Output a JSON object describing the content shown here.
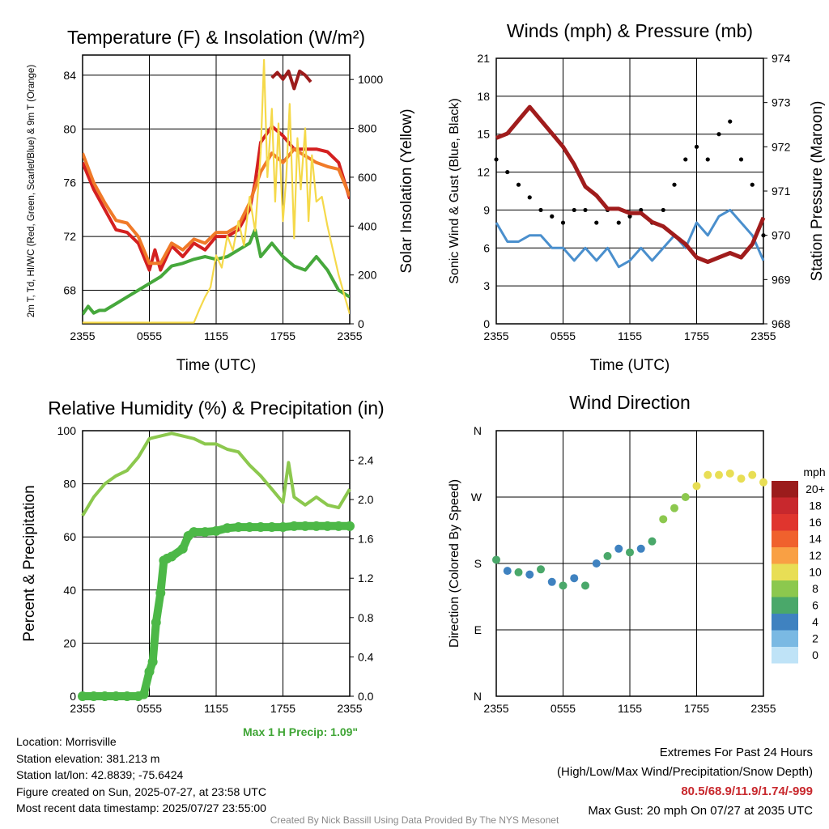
{
  "chart_data": [
    {
      "type": "line",
      "title": "Temperature (F) & Insolation (W/m²)",
      "xlabel": "Time (UTC)",
      "ylabel": "2m T, Td, HI/WC (Red, Green, Scarlet/Blue) & 9m T (Orange)",
      "y2label": "Solar Insolation (Yellow)",
      "x_ticks": [
        "2355",
        "0555",
        "1155",
        "1755",
        "2355"
      ],
      "y_ticks": [
        68,
        72,
        76,
        80,
        84
      ],
      "y2_ticks": [
        0,
        200,
        400,
        600,
        800,
        1000
      ],
      "ylim": [
        65.5,
        85.5
      ],
      "y2lim": [
        0,
        1100
      ],
      "series": [
        {
          "name": "2m T",
          "color": "#d42020",
          "x": [
            0,
            1,
            2,
            3,
            4,
            5,
            6,
            6.5,
            7,
            8,
            9,
            10,
            11,
            12,
            13,
            14,
            15,
            15.5,
            16,
            17,
            18,
            19,
            20,
            21,
            22,
            23,
            24
          ],
          "values": [
            77.5,
            75.5,
            74,
            72.5,
            72.3,
            71.5,
            69.5,
            71,
            69.5,
            71.3,
            70.5,
            71.5,
            71,
            72,
            72,
            72.5,
            74,
            76,
            79,
            80.2,
            79.5,
            78.5,
            78.5,
            78.5,
            78.3,
            77.5,
            74.8
          ]
        },
        {
          "name": "9m T",
          "color": "#f07a28",
          "x": [
            0,
            1,
            2,
            3,
            4,
            5,
            6,
            7,
            8,
            9,
            10,
            11,
            12,
            13,
            14,
            15,
            16,
            17,
            18,
            19,
            20,
            21,
            22,
            23,
            24
          ],
          "values": [
            78.2,
            76,
            74.5,
            73.2,
            73,
            72,
            70,
            70,
            71.5,
            71,
            71.8,
            71.5,
            72.3,
            72.3,
            72.8,
            74.5,
            76.8,
            78.2,
            77.5,
            78.5,
            78,
            77.5,
            77.2,
            77,
            75
          ]
        },
        {
          "name": "HI",
          "color": "#9c1c1c",
          "x": [
            17,
            17.5,
            18,
            18.5,
            19,
            19.5,
            20,
            20.5
          ],
          "values": [
            83.8,
            84.2,
            83.7,
            84.3,
            83,
            84.3,
            84,
            83.5
          ]
        },
        {
          "name": "Td",
          "color": "#46a83c",
          "x": [
            0,
            0.5,
            1,
            1.5,
            2,
            3,
            4,
            5,
            6,
            7,
            8,
            9,
            10,
            11,
            12,
            13,
            14,
            15,
            15.5,
            16,
            17,
            18,
            19,
            20,
            21,
            22,
            23,
            24
          ],
          "values": [
            66.2,
            66.8,
            66.3,
            66.5,
            66.5,
            67,
            67.5,
            68,
            68.5,
            69,
            69.8,
            70,
            70.3,
            70.5,
            70.3,
            70.5,
            71,
            71.5,
            72.5,
            70.5,
            71.5,
            70.5,
            69.8,
            69.5,
            70.5,
            69.5,
            68,
            67.5
          ]
        },
        {
          "name": "Solar",
          "color": "#f5d94a",
          "axis": "y2",
          "x": [
            0,
            1,
            2,
            3,
            4,
            5,
            6,
            7,
            8,
            9,
            10,
            10.5,
            11,
            11.5,
            12,
            12.5,
            13,
            13.5,
            14,
            14.5,
            15,
            15.5,
            16,
            16.3,
            16.6,
            17,
            17.3,
            17.6,
            18,
            18.3,
            18.6,
            19,
            19.3,
            19.6,
            20,
            20.3,
            20.6,
            21,
            21.5,
            22,
            22.5,
            23,
            23.5,
            24
          ],
          "values": [
            5,
            5,
            5,
            5,
            5,
            5,
            5,
            5,
            5,
            5,
            5,
            60,
            110,
            150,
            280,
            230,
            360,
            300,
            420,
            320,
            520,
            380,
            700,
            1080,
            600,
            880,
            500,
            820,
            420,
            600,
            900,
            350,
            760,
            550,
            800,
            420,
            690,
            500,
            520,
            400,
            300,
            200,
            120,
            40
          ]
        }
      ]
    },
    {
      "type": "line",
      "title": "Winds (mph) & Pressure (mb)",
      "xlabel": "Time (UTC)",
      "ylabel": "Sonic Wind & Gust (Blue, Black)",
      "y2label": "Station Pressure (Maroon)",
      "x_ticks": [
        "2355",
        "0555",
        "1155",
        "1755",
        "2355"
      ],
      "y_ticks": [
        0,
        3,
        6,
        9,
        12,
        15,
        18,
        21
      ],
      "y2_ticks": [
        968,
        969,
        970,
        971,
        972,
        973,
        974
      ],
      "ylim": [
        0,
        21
      ],
      "y2lim": [
        968,
        974
      ],
      "series": [
        {
          "name": "Sonic Wind",
          "color": "#4a8fcd",
          "x": [
            0,
            1,
            2,
            3,
            4,
            5,
            6,
            7,
            8,
            9,
            10,
            11,
            12,
            13,
            14,
            15,
            16,
            17,
            18,
            19,
            20,
            21,
            22,
            23,
            24
          ],
          "values": [
            8,
            6.5,
            6.5,
            7,
            7,
            6,
            6,
            5,
            6,
            5,
            6,
            4.5,
            5,
            6,
            5,
            6,
            7,
            6,
            8,
            7,
            8.5,
            9,
            8,
            7,
            5
          ]
        },
        {
          "name": "Gust",
          "color": "#000000",
          "x": [
            0,
            1,
            2,
            3,
            4,
            5,
            6,
            7,
            8,
            9,
            10,
            11,
            12,
            13,
            14,
            15,
            16,
            17,
            18,
            19,
            20,
            21,
            22,
            23,
            24
          ],
          "values": [
            13,
            12,
            11,
            10,
            9,
            8.5,
            8,
            9,
            9,
            8,
            9,
            8,
            8.5,
            9,
            8,
            9,
            11,
            13,
            14,
            13,
            15,
            16,
            13,
            11,
            7
          ]
        },
        {
          "name": "Pressure",
          "color": "#a01c1c",
          "axis": "y2",
          "x": [
            0,
            1,
            2,
            3,
            4,
            5,
            6,
            7,
            8,
            9,
            10,
            11,
            12,
            13,
            14,
            15,
            16,
            17,
            18,
            19,
            20,
            21,
            22,
            23,
            24
          ],
          "values": [
            972.2,
            972.3,
            972.6,
            972.9,
            972.6,
            972.3,
            972,
            971.6,
            971.1,
            970.9,
            970.6,
            970.6,
            970.5,
            970.5,
            970.3,
            970.2,
            970,
            969.8,
            969.5,
            969.4,
            969.5,
            969.6,
            969.5,
            969.8,
            970.4
          ]
        }
      ]
    },
    {
      "type": "line",
      "title": "Relative Humidity (%) & Precipitation (in)",
      "ylabel": "Percent & Precipitation",
      "x_ticks": [
        "2355",
        "0555",
        "1155",
        "1755",
        "2355"
      ],
      "y_ticks": [
        0,
        20,
        40,
        60,
        80,
        100
      ],
      "y2_ticks": [
        "0.0",
        "0.4",
        "0.8",
        "1.2",
        "1.6",
        "2.0",
        "2.4"
      ],
      "ylim": [
        0,
        100
      ],
      "y2lim": [
        0,
        2.7
      ],
      "annotation": "Max 1 H Precip: 1.09\"",
      "series": [
        {
          "name": "RH",
          "color": "#8cc84e",
          "x": [
            0,
            1,
            2,
            3,
            4,
            5,
            6,
            7,
            8,
            9,
            10,
            11,
            12,
            13,
            14,
            15,
            16,
            17,
            18,
            18.5,
            19,
            20,
            21,
            22,
            23,
            24
          ],
          "values": [
            68,
            75,
            80,
            83,
            85,
            90,
            97,
            98,
            99,
            98,
            97,
            95,
            95,
            93,
            92,
            87,
            83,
            78,
            73,
            88,
            75,
            72,
            75,
            72,
            71,
            78
          ]
        },
        {
          "name": "Precip",
          "color": "#4cb847",
          "x": [
            0,
            1,
            2,
            3,
            4,
            5,
            5.5,
            6,
            6.3,
            6.6,
            7,
            7.3,
            7.6,
            8,
            9,
            9.5,
            10,
            11,
            12,
            13,
            14,
            15,
            16,
            17,
            18,
            19,
            20,
            21,
            22,
            23,
            24
          ],
          "values": [
            0,
            0,
            0,
            0,
            0,
            0,
            0.02,
            0.25,
            0.35,
            0.75,
            1.05,
            1.38,
            1.4,
            1.42,
            1.5,
            1.63,
            1.67,
            1.67,
            1.68,
            1.71,
            1.72,
            1.72,
            1.72,
            1.72,
            1.72,
            1.73,
            1.73,
            1.73,
            1.73,
            1.73,
            1.73
          ]
        }
      ]
    },
    {
      "type": "scatter",
      "title": "Wind Direction",
      "ylabel": "Direction (Colored By Speed)",
      "x_ticks": [
        "2355",
        "0555",
        "1155",
        "1755",
        "2355"
      ],
      "y_ticks": [
        "N",
        "E",
        "S",
        "W",
        "N"
      ],
      "legend_title": "mph",
      "legend": [
        "20+",
        "18",
        "16",
        "14",
        "12",
        "10",
        "8",
        "6",
        "4",
        "2",
        "0"
      ],
      "legend_colors": [
        "#9b1c1c",
        "#c8282d",
        "#e0352e",
        "#f0612d",
        "#f9a044",
        "#e8de55",
        "#8cc84e",
        "#4aa86a",
        "#3f82c0",
        "#7ab9e3",
        "#bfe3f7"
      ],
      "series": [
        {
          "name": "Direction",
          "x": [
            0,
            1,
            2,
            3,
            4,
            5,
            6,
            7,
            8,
            9,
            10,
            11,
            12,
            13,
            14,
            15,
            16,
            17,
            18,
            19,
            20,
            21,
            22,
            23,
            24
          ],
          "values": [
            185,
            170,
            168,
            165,
            172,
            155,
            150,
            160,
            150,
            180,
            190,
            200,
            195,
            200,
            210,
            240,
            255,
            270,
            285,
            300,
            300,
            302,
            295,
            300,
            290
          ]
        }
      ]
    }
  ],
  "info": {
    "location": "Location: Morrisville",
    "elevation": "Station elevation: 381.213 m",
    "latlon": "Station lat/lon: 42.8839; -75.6424",
    "created": "Figure created on Sun, 2025-07-27, at 23:58 UTC",
    "recent": "Most recent data timestamp: 2025/07/27 23:55:00"
  },
  "extremes": {
    "title": "Extremes For Past 24 Hours",
    "subtitle": "(High/Low/Max Wind/Precipitation/Snow Depth)",
    "values": "80.5/68.9/11.9/1.74/-999",
    "gust": "Max Gust: 20 mph On 07/27 at 2035 UTC"
  },
  "credit": "Created By Nick Bassill Using Data Provided By The NYS Mesonet"
}
